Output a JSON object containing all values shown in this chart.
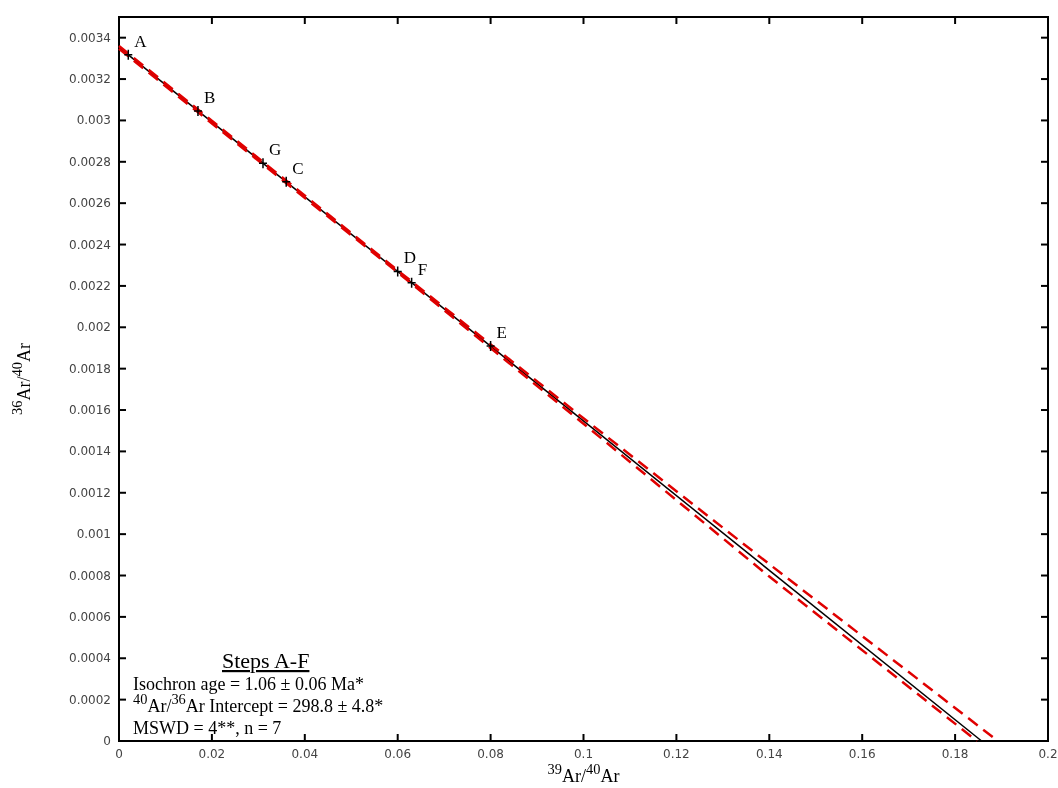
{
  "chart_data": {
    "type": "line",
    "xlabel": "$^{39}$Ar/$^{40}$Ar",
    "ylabel": "$^{36}$Ar/$^{40}$Ar",
    "xlim": [
      0,
      0.2
    ],
    "ylim": [
      0,
      0.0035
    ],
    "xticks": [
      0,
      0.02,
      0.04,
      0.06,
      0.08,
      0.1,
      0.12,
      0.14,
      0.16,
      0.18,
      0.2
    ],
    "yticks": [
      0,
      0.0002,
      0.0004,
      0.0006,
      0.0008,
      0.001,
      0.0012,
      0.0014,
      0.0016,
      0.0018,
      0.002,
      0.0022,
      0.0024,
      0.0026,
      0.0028,
      0.003,
      0.0032,
      0.0034
    ],
    "series": [
      {
        "color": "#000000",
        "line_style": "solid",
        "x": [
          0,
          0.1857
        ],
        "values": [
          0.003353,
          0
        ]
      },
      {
        "color": "#e00000",
        "line_style": "dashed",
        "x": [
          0,
          0.06,
          0.1,
          0.14,
          0.1892
        ],
        "values": [
          0.00336,
          0.002275,
          0.00156,
          0.000855,
          0
        ]
      },
      {
        "color": "#e00000",
        "line_style": "dashed",
        "x": [
          0,
          0.06,
          0.1,
          0.14,
          0.1847
        ],
        "values": [
          0.003346,
          0.002265,
          0.001534,
          0.000795,
          0
        ]
      },
      {
        "type": "scatter",
        "color": "#000000",
        "marker": "cross",
        "x": [
          0.002,
          0.017,
          0.031,
          0.036,
          0.06,
          0.063,
          0.08
        ],
        "values": [
          0.003317,
          0.003046,
          0.002793,
          0.002703,
          0.00227,
          0.002215,
          0.001909
        ]
      }
    ],
    "annotations": [
      {
        "text": "A",
        "x": 0.002,
        "y": 0.003317
      },
      {
        "text": "B",
        "x": 0.017,
        "y": 0.003046
      },
      {
        "text": "G",
        "x": 0.031,
        "y": 0.002793
      },
      {
        "text": "C",
        "x": 0.036,
        "y": 0.002703
      },
      {
        "text": "D",
        "x": 0.06,
        "y": 0.00227
      },
      {
        "text": "F",
        "x": 0.063,
        "y": 0.002215
      },
      {
        "text": "E",
        "x": 0.08,
        "y": 0.001909
      },
      "Steps A-F",
      "Isochron age =  1.06 ± 0.06 Ma*",
      "$^{40}$Ar/$^{36}$Ar Intercept =  298.8 ± 4.8*",
      "MSWD = 4**, n = 7"
    ]
  }
}
